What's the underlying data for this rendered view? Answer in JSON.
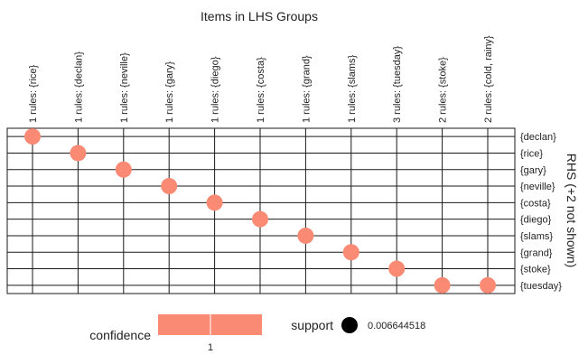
{
  "chart_data": {
    "type": "scatter",
    "title": "Items in LHS Groups",
    "x_groups": [
      "1 rules: {rice}",
      "1 rules: {declan}",
      "1 rules: {neville}",
      "1 rules: {gary}",
      "1 rules: {diego}",
      "1 rules: {costa}",
      "1 rules: {grand}",
      "1 rules: {slams}",
      "3 rules: {tuesday}",
      "2 rules: {stoke}",
      "2 rules: {cold, rainy}"
    ],
    "y_items": [
      "{declan}",
      "{rice}",
      "{gary}",
      "{neville}",
      "{costa}",
      "{diego}",
      "{slams}",
      "{grand}",
      "{stoke}",
      "{tuesday}"
    ],
    "ylabel": "RHS (+2 not shown)",
    "points": [
      {
        "group": "1 rules: {rice}",
        "item": "{declan}",
        "confidence": 1,
        "support": 0.006644518
      },
      {
        "group": "1 rules: {declan}",
        "item": "{rice}",
        "confidence": 1,
        "support": 0.006644518
      },
      {
        "group": "1 rules: {neville}",
        "item": "{gary}",
        "confidence": 1,
        "support": 0.006644518
      },
      {
        "group": "1 rules: {gary}",
        "item": "{neville}",
        "confidence": 1,
        "support": 0.006644518
      },
      {
        "group": "1 rules: {diego}",
        "item": "{costa}",
        "confidence": 1,
        "support": 0.006644518
      },
      {
        "group": "1 rules: {costa}",
        "item": "{diego}",
        "confidence": 1,
        "support": 0.006644518
      },
      {
        "group": "1 rules: {grand}",
        "item": "{slams}",
        "confidence": 1,
        "support": 0.006644518
      },
      {
        "group": "1 rules: {slams}",
        "item": "{grand}",
        "confidence": 1,
        "support": 0.006644518
      },
      {
        "group": "3 rules: {tuesday}",
        "item": "{stoke}",
        "confidence": 1,
        "support": 0.006644518
      },
      {
        "group": "2 rules: {stoke}",
        "item": "{tuesday}",
        "confidence": 1,
        "support": 0.006644518
      },
      {
        "group": "2 rules: {cold, rainy}",
        "item": "{tuesday}",
        "confidence": 1,
        "support": 0.006644518
      }
    ],
    "legend": {
      "confidence_label": "confidence",
      "confidence_tick": "1",
      "support_label": "support",
      "support_value": "0.006644518"
    },
    "colors": {
      "point": "#fa8a74",
      "grid": "#1a1a1a",
      "support_dot": "#000000"
    },
    "grid": true
  }
}
